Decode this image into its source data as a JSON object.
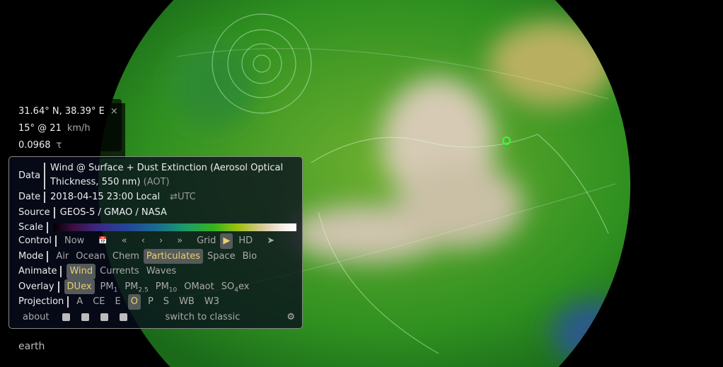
{
  "spot": {
    "coords": "31.64° N, 38.39° E",
    "close": "×",
    "wind": "15° @ 21",
    "wind_unit": "km/h",
    "value": "0.0968",
    "value_unit": "τ"
  },
  "menu": {
    "data_label": "Data",
    "data_line1": "Wind @ Surface + Dust Extinction (Aerosol Optical",
    "data_line2": "Thickness, 550 nm)",
    "data_abbr": "(AOT)",
    "date_label": "Date",
    "date_value": "2018-04-15 23:00 Local",
    "date_toggle": "⇄UTC",
    "source_label": "Source",
    "source_value": "GEOS-5 / GMAO / NASA",
    "scale_label": "Scale",
    "control_label": "Control",
    "control": {
      "now": "Now",
      "calendar": "📅",
      "back_far": "«",
      "back": "‹",
      "fwd": "›",
      "fwd_far": "»",
      "grid": "Grid",
      "play": "▶",
      "hd": "HD",
      "locate": "➤"
    },
    "mode_label": "Mode",
    "modes": [
      "Air",
      "Ocean",
      "Chem",
      "Particulates",
      "Space",
      "Bio"
    ],
    "animate_label": "Animate",
    "animate": [
      "Wind",
      "Currents",
      "Waves"
    ],
    "overlay_label": "Overlay",
    "overlay": {
      "duex": "DUex",
      "pm1": "PM",
      "pm1_sub": "1",
      "pm25": "PM",
      "pm25_sub": "2.5",
      "pm10": "PM",
      "pm10_sub": "10",
      "omaot": "OMaot",
      "so4_a": "SO",
      "so4_sub": "4",
      "so4_b": "ex"
    },
    "projection_label": "Projection",
    "projections": [
      "A",
      "CE",
      "E",
      "O",
      "P",
      "S",
      "WB",
      "W3"
    ],
    "about": "about",
    "switch": "switch to classic"
  },
  "selected": {
    "mode": "Particulates",
    "animate": "Wind",
    "overlay": "DUex",
    "projection": "O"
  },
  "brand": "earth",
  "colors": {
    "accent": "#e8d070",
    "globe_green": "#3a9a20",
    "dust": "#d8ccb8"
  }
}
